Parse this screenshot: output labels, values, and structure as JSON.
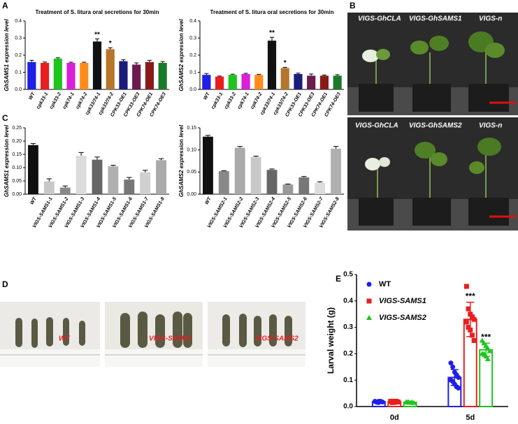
{
  "panels": [
    "A",
    "B",
    "C",
    "D",
    "E"
  ],
  "photos": {
    "B_top": [
      "VIGS-GhCLA",
      "VIGS-GhSAMS1",
      "VIGS-n"
    ],
    "B_bottom": [
      "VIGS-GhCLA",
      "VIGS-GhSAMS2",
      "VIGS-n"
    ],
    "D": [
      "WT",
      "VIGS-SAMS1",
      "VIGS-SAMS2"
    ]
  },
  "chart_data": [
    {
      "type": "bar",
      "title": "Treatment of S. litura oral secretions for 30min",
      "ylabel": "GhSAMS1 expression level",
      "categories": [
        "WT",
        "cpk33-1",
        "cpk33-2",
        "cpk74-1",
        "cpk74-2",
        "cpk33/74-1",
        "cpk33/74-2",
        "CPK33-OE1",
        "CPK33-OE3",
        "CPK74-OE1",
        "CPK74-OE3"
      ],
      "values": [
        0.16,
        0.155,
        0.18,
        0.155,
        0.155,
        0.28,
        0.235,
        0.165,
        0.145,
        0.16,
        0.155
      ],
      "errors": [
        0.01,
        0.005,
        0.005,
        0.004,
        0.004,
        0.015,
        0.008,
        0.008,
        0.01,
        0.01,
        0.008
      ],
      "significance": [
        null,
        null,
        null,
        null,
        null,
        "**",
        "*",
        null,
        null,
        null,
        null
      ],
      "colors": [
        "#1f1fe8",
        "#e81f1f",
        "#1fc41f",
        "#d91fd9",
        "#ff8c1a",
        "#111111",
        "#b5762c",
        "#1c1c7a",
        "#6b1b4e",
        "#8b1a1a",
        "#1a7a2a"
      ],
      "ylim": [
        0,
        0.4
      ],
      "yticks": [
        {
          "value": 0,
          "label": "0.0"
        },
        0.1,
        0.2,
        0.3,
        0.4
      ]
    },
    {
      "type": "bar",
      "title": "Treatment of S. litura oral secretions for 30min",
      "ylabel": "GhSAMS2 expression level",
      "categories": [
        "WT",
        "cpk33-1",
        "cpk33-2",
        "cpk74-1",
        "cpk74-2",
        "cpk33/74-1",
        "cpk33/74-2",
        "CPK33-OE1",
        "CPK33-OE3",
        "CPK74-OE1",
        "CPK74-OE3"
      ],
      "values": [
        0.085,
        0.075,
        0.085,
        0.09,
        0.085,
        0.285,
        0.125,
        0.09,
        0.08,
        0.08,
        0.08
      ],
      "errors": [
        0.008,
        0.003,
        0.004,
        0.004,
        0.003,
        0.02,
        0.004,
        0.005,
        0.01,
        0.004,
        0.006
      ],
      "significance": [
        null,
        null,
        null,
        null,
        null,
        "**",
        "*",
        null,
        null,
        null,
        null
      ],
      "colors": [
        "#1f1fe8",
        "#e81f1f",
        "#1fc41f",
        "#d91fd9",
        "#ff8c1a",
        "#111111",
        "#b5762c",
        "#1c1c7a",
        "#6b1b4e",
        "#8b1a1a",
        "#1a7a2a"
      ],
      "ylim": [
        0,
        0.4
      ],
      "yticks": [
        {
          "value": 0,
          "label": "0.0"
        },
        0.1,
        0.2,
        0.3,
        0.4
      ]
    },
    {
      "type": "bar",
      "ylabel": "GhSAMS1 expression level",
      "categories": [
        "WT",
        "VIGS-SAMS1-1",
        "VIGS-SAMS1-2",
        "VIGS-SAMS1-3",
        "VIGS-SAMS1-4",
        "VIGS-SAMS1-5",
        "VIGS-SAMS1-6",
        "VIGS-SAMS1-7",
        "VIGS-SAMS1-8"
      ],
      "values": [
        0.185,
        0.048,
        0.025,
        0.145,
        0.13,
        0.105,
        0.055,
        0.083,
        0.128
      ],
      "errors": [
        0.006,
        0.01,
        0.006,
        0.012,
        0.01,
        0.004,
        0.008,
        0.007,
        0.006
      ],
      "colors": [
        "#111111",
        "#c8c8c8",
        "#888888",
        "#dcdcdc",
        "#666666",
        "#b0b0b0",
        "#777777",
        "#d0d0d0",
        "#aaaaaa"
      ],
      "ylim": [
        0,
        0.25
      ],
      "yticks": [
        {
          "value": 0,
          "label": "0.00"
        },
        0.05,
        {
          "value": 0.1,
          "label": "0.10"
        },
        0.15,
        {
          "value": 0.2,
          "label": "0.20"
        },
        0.25
      ]
    },
    {
      "type": "bar",
      "ylabel": "GhSAMS2 expression level",
      "categories": [
        "WT",
        "VIGS-SAMS2-1",
        "VIGS-SAMS2-2",
        "VIGS-SAMS2-3",
        "VIGS-SAMS2-4",
        "VIGS-SAMS2-5",
        "VIGS-SAMS2-6",
        "VIGS-SAMS2-7",
        "VIGS-SAMS2-8"
      ],
      "values": [
        0.13,
        0.052,
        0.105,
        0.084,
        0.055,
        0.022,
        0.038,
        0.026,
        0.103
      ],
      "errors": [
        0.003,
        0.001,
        0.003,
        0.002,
        0.002,
        0.001,
        0.002,
        0.002,
        0.005
      ],
      "colors": [
        "#111111",
        "#888888",
        "#aaaaaa",
        "#c8c8c8",
        "#666666",
        "#999999",
        "#777777",
        "#dcdcdc",
        "#b0b0b0"
      ],
      "ylim": [
        0,
        0.15
      ],
      "yticks": [
        {
          "value": 0,
          "label": "0.00"
        },
        0.05,
        {
          "value": 0.1,
          "label": "0.10"
        },
        0.15
      ]
    },
    {
      "type": "grouped_bar",
      "ylabel": "Larval weight (g)",
      "categories": [
        "0d",
        "5d"
      ],
      "series": [
        {
          "name": "WT",
          "color": "#1f1fe8",
          "marker": "circle",
          "values": [
            0.018,
            0.11
          ],
          "errors": [
            0.002,
            0.03
          ],
          "points": [
            [
              0.02,
              0.018,
              0.015,
              0.02,
              0.017,
              0.019,
              0.016,
              0.02
            ],
            [
              0.165,
              0.15,
              0.13,
              0.12,
              0.11,
              0.1,
              0.095,
              0.085,
              0.075,
              0.07
            ]
          ],
          "significance": [
            null,
            null
          ]
        },
        {
          "name": "VIGS-SAMS1",
          "color": "#e81f1f",
          "marker": "square",
          "values": [
            0.018,
            0.33
          ],
          "errors": [
            0.002,
            0.065
          ],
          "points": [
            [
              0.02,
              0.018,
              0.016,
              0.02,
              0.017,
              0.019,
              0.015,
              0.02
            ],
            [
              0.455,
              0.37,
              0.35,
              0.34,
              0.33,
              0.32,
              0.3,
              0.29,
              0.27,
              0.25
            ]
          ],
          "significance": [
            null,
            "***"
          ]
        },
        {
          "name": "VIGS-SAMS2",
          "color": "#1fc41f",
          "marker": "triangle",
          "values": [
            0.016,
            0.215
          ],
          "errors": [
            0.002,
            0.025
          ],
          "points": [
            [
              0.018,
              0.016,
              0.015,
              0.017,
              0.014,
              0.016,
              0.018,
              0.015
            ],
            [
              0.25,
              0.24,
              0.23,
              0.22,
              0.21,
              0.2,
              0.2,
              0.19,
              0.18
            ]
          ],
          "significance": [
            null,
            "***"
          ]
        }
      ],
      "ylim": [
        0,
        0.5
      ],
      "yticks": [
        {
          "value": 0,
          "label": "0.0"
        },
        0.1,
        0.2,
        0.3,
        0.4,
        0.5
      ]
    }
  ]
}
